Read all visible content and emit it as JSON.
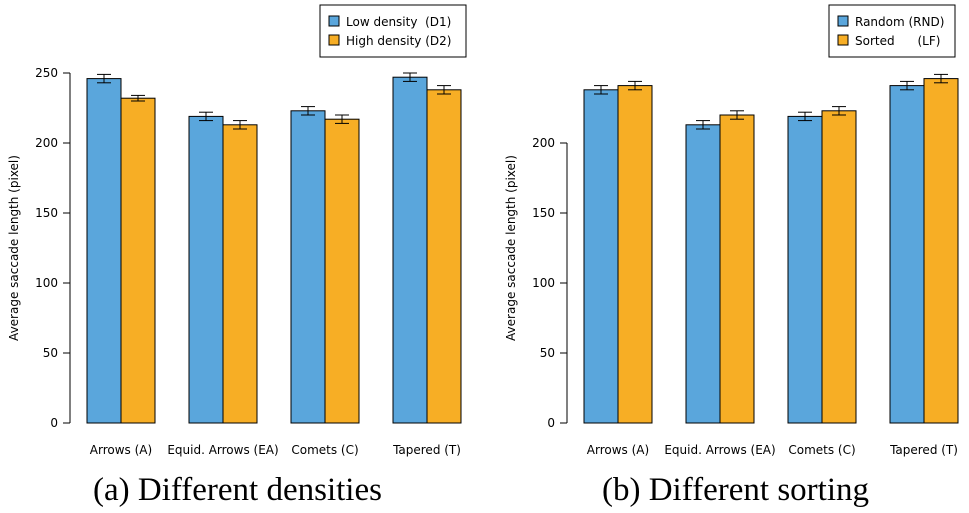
{
  "colors": {
    "series_a": "#5aa6dc",
    "series_b": "#f7ae25",
    "stroke": "#000000"
  },
  "chart_data": [
    {
      "type": "bar",
      "caption": "(a)  Different densities",
      "ylabel": "Average saccade length (pixel)",
      "ylim": [
        0,
        250
      ],
      "yticks": [
        0,
        50,
        100,
        150,
        200,
        250
      ],
      "categories": [
        "Arrows (A)",
        "Equid. Arrows (EA)",
        "Comets (C)",
        "Tapered (T)"
      ],
      "legend_position": "top-right",
      "series": [
        {
          "name": "Low density  (D1)",
          "values": [
            246,
            219,
            223,
            247
          ],
          "err": [
            3,
            3,
            3,
            3
          ]
        },
        {
          "name": "High density (D2)",
          "values": [
            232,
            213,
            217,
            238
          ],
          "err": [
            2,
            3,
            3,
            3
          ]
        }
      ]
    },
    {
      "type": "bar",
      "caption": "(b)  Different sorting",
      "ylabel": "Average saccade length (pixel)",
      "ylim": [
        0,
        250
      ],
      "yticks": [
        0,
        50,
        100,
        150,
        200
      ],
      "categories": [
        "Arrows (A)",
        "Equid. Arrows (EA)",
        "Comets (C)",
        "Tapered (T)"
      ],
      "legend_position": "top-right",
      "series": [
        {
          "name": "Random (RND)",
          "values": [
            238,
            213,
            219,
            241
          ],
          "err": [
            3,
            3,
            3,
            3
          ]
        },
        {
          "name": "Sorted      (LF)",
          "values": [
            241,
            220,
            223,
            246
          ],
          "err": [
            3,
            3,
            3,
            3
          ]
        }
      ]
    }
  ]
}
